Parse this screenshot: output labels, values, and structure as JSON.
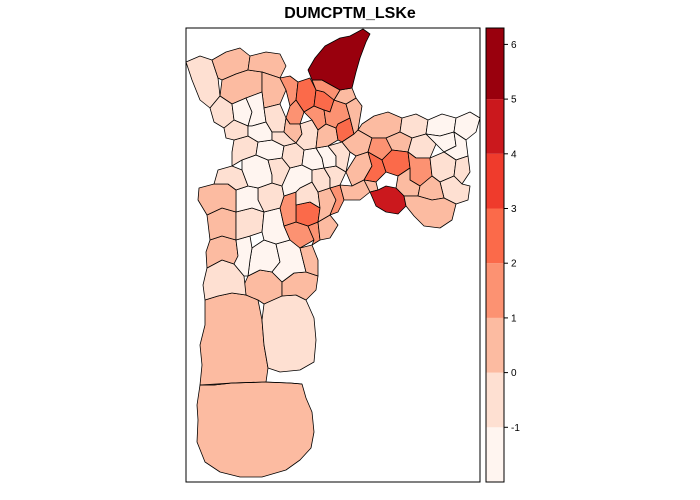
{
  "title": "DUMCPTM_LSKe",
  "legend": {
    "tick_labels": [
      "-1",
      "0",
      "1",
      "2",
      "3",
      "4",
      "5",
      "6"
    ],
    "class_colors": [
      "#fff5f0",
      "#fee0d2",
      "#fcbba1",
      "#fc9272",
      "#fb6a4a",
      "#ef3b2c",
      "#cb181d",
      "#99000d"
    ],
    "range": [
      -2,
      6.3
    ]
  },
  "colors": {
    "lightest": "#fff5f0",
    "light": "#fee0d2",
    "pale": "#fcbba1",
    "medium": "#fc9272",
    "orange": "#fb6a4a",
    "red": "#ef3b2c",
    "deep_red": "#cb181d",
    "darkest": "#99000d",
    "border": "#000000",
    "background": "#ffffff"
  }
}
